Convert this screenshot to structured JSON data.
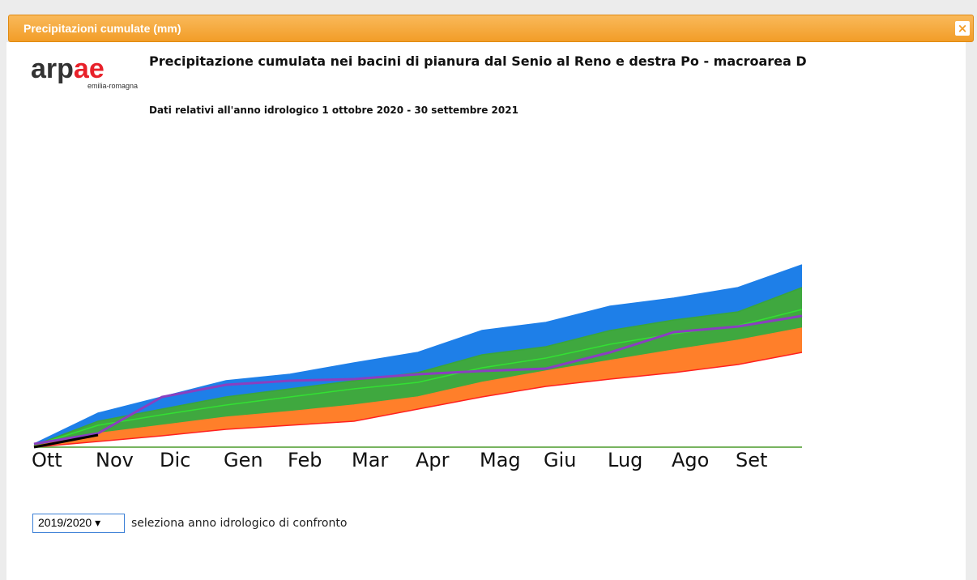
{
  "window": {
    "title": "Precipitazioni cumulate (mm)",
    "close": "×"
  },
  "logo": {
    "part1": "arp",
    "part2": "ae",
    "sub": "emilia-romagna"
  },
  "chart_data": {
    "type": "area",
    "title": "Precipitazione cumulata nei bacini di pianura dal Senio al Reno e destra Po - macroarea D",
    "subtitle": "Dati relativi all'anno idrologico 1 ottobre 2020 - 30 settembre 2021",
    "x": [
      0,
      1,
      2,
      3,
      4,
      5,
      6,
      7,
      8,
      9,
      10,
      11,
      12
    ],
    "xlim": [
      0,
      12
    ],
    "xticks": [
      {
        "value": 0,
        "label": "Ott"
      },
      {
        "value": 1,
        "label": "Nov"
      },
      {
        "value": 2,
        "label": "Dic"
      },
      {
        "value": 3,
        "label": "Gen"
      },
      {
        "value": 4,
        "label": "Feb"
      },
      {
        "value": 5,
        "label": "Mar"
      },
      {
        "value": 6,
        "label": "Apr"
      },
      {
        "value": 7,
        "label": "Mag"
      },
      {
        "value": 8,
        "label": "Giu"
      },
      {
        "value": 9,
        "label": "Lug"
      },
      {
        "value": 10,
        "label": "Ago"
      },
      {
        "value": 11,
        "label": "Set"
      }
    ],
    "ylim": [
      0,
      252
    ],
    "series": [
      {
        "color": "#1e7fe8",
        "fill": "#1e7fe8",
        "values": [
          4,
          42,
          62,
          82,
          90,
          104,
          117,
          144,
          154,
          174,
          184,
          197,
          225
        ]
      },
      {
        "color": "#3aa53a",
        "fill": "#3fa83f",
        "values": [
          2,
          32,
          47,
          62,
          72,
          82,
          92,
          114,
          124,
          144,
          157,
          167,
          197
        ]
      },
      {
        "color": "#33e033",
        "fill": "#3fa83f",
        "values": [
          2,
          27,
          40,
          52,
          62,
          72,
          80,
          98,
          110,
          127,
          140,
          150,
          170
        ]
      },
      {
        "color": "#ff7f2a",
        "fill": "#ff7f2a",
        "values": [
          1,
          17,
          27,
          37,
          44,
          52,
          62,
          80,
          94,
          107,
          120,
          132,
          147
        ]
      },
      {
        "color": "#ff2020",
        "values": [
          0,
          7,
          14,
          22,
          27,
          32,
          47,
          62,
          75,
          84,
          92,
          102,
          117
        ]
      },
      {
        "color": "#8a3fc0",
        "values": [
          4,
          17,
          62,
          77,
          82,
          84,
          90,
          94,
          97,
          117,
          142,
          149,
          162
        ]
      },
      {
        "color": "#000000",
        "values": [
          0,
          15,
          null,
          null,
          null,
          null,
          null,
          null,
          null,
          null,
          null,
          null,
          null
        ]
      }
    ]
  },
  "controls": {
    "select": "2019/2020",
    "label": "seleziona anno idrologico di confronto"
  }
}
